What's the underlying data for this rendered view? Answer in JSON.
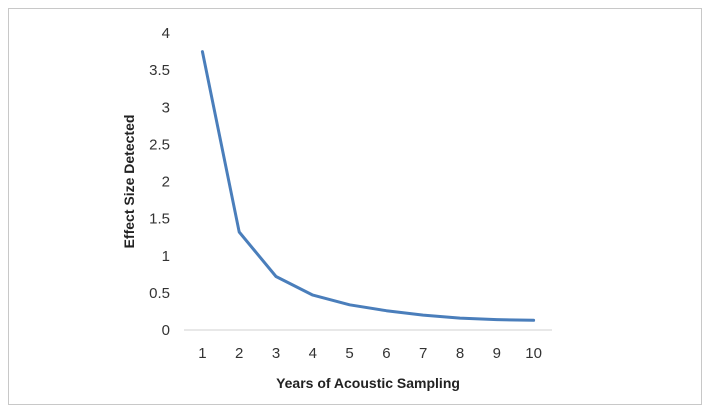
{
  "chart_data": {
    "type": "line",
    "title": "",
    "xlabel": "Years of Acoustic Sampling",
    "ylabel": "Effect Size Detected",
    "x": [
      1,
      2,
      3,
      4,
      5,
      6,
      7,
      8,
      9,
      10
    ],
    "series": [
      {
        "values": [
          3.75,
          1.32,
          0.72,
          0.47,
          0.34,
          0.26,
          0.2,
          0.16,
          0.14,
          0.13
        ],
        "color": "#4a7ebb"
      }
    ],
    "xticks": [
      "1",
      "2",
      "3",
      "4",
      "5",
      "6",
      "7",
      "8",
      "9",
      "10"
    ],
    "yticks": [
      "0",
      "0.5",
      "1",
      "1.5",
      "2",
      "2.5",
      "3",
      "3.5",
      "4"
    ],
    "ylim": [
      0,
      4
    ],
    "grid": false,
    "legend": "none"
  }
}
